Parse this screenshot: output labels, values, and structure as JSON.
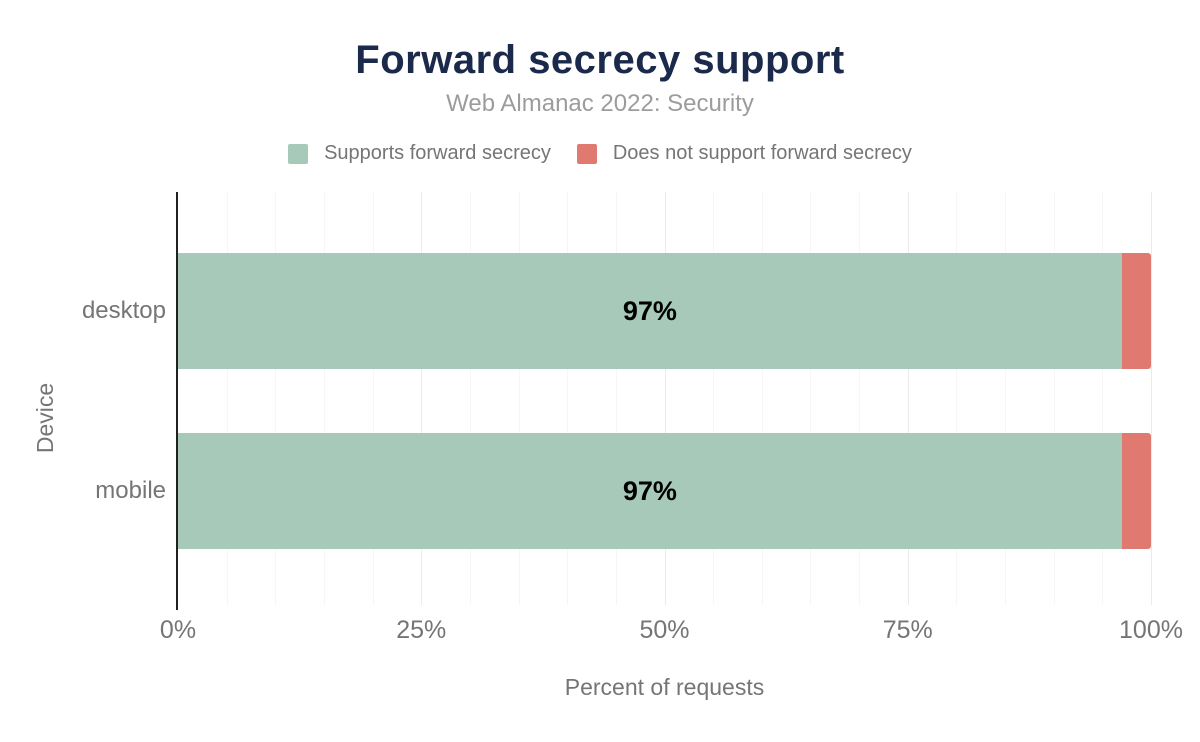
{
  "title": "Forward secrecy support",
  "subtitle": "Web Almanac 2022: Security",
  "chart_data": {
    "type": "bar",
    "orientation": "horizontal",
    "stacked": true,
    "title": "Forward secrecy support",
    "subtitle": "Web Almanac 2022: Security",
    "xlabel": "Percent of requests",
    "ylabel": "Device",
    "categories": [
      "desktop",
      "mobile"
    ],
    "series": [
      {
        "name": "Supports forward secrecy",
        "color": "#a6c9b9",
        "values": [
          97,
          97
        ]
      },
      {
        "name": "Does not support forward secrecy",
        "color": "#e07a70",
        "values": [
          3,
          3
        ]
      }
    ],
    "bar_value_labels": [
      "97%",
      "97%"
    ],
    "xlim": [
      0,
      100
    ],
    "x_tick_labels": [
      "0%",
      "25%",
      "50%",
      "75%",
      "100%"
    ],
    "x_tick_positions": [
      0,
      25,
      50,
      75,
      100
    ],
    "minor_gridline_step": 5,
    "grid": true,
    "legend_position": "top-center"
  },
  "colors": {
    "background": "#ffffff",
    "title": "#1b2a4a",
    "subtitle": "#9c9c9c",
    "text_muted": "#757575",
    "bar_value": "#000000",
    "axis_line": "#212121",
    "gridline_minor": "#f6f6f6",
    "gridline_major": "#ebebeb",
    "series_supports": "#a6c9b9",
    "series_not_supports": "#e07a70"
  }
}
